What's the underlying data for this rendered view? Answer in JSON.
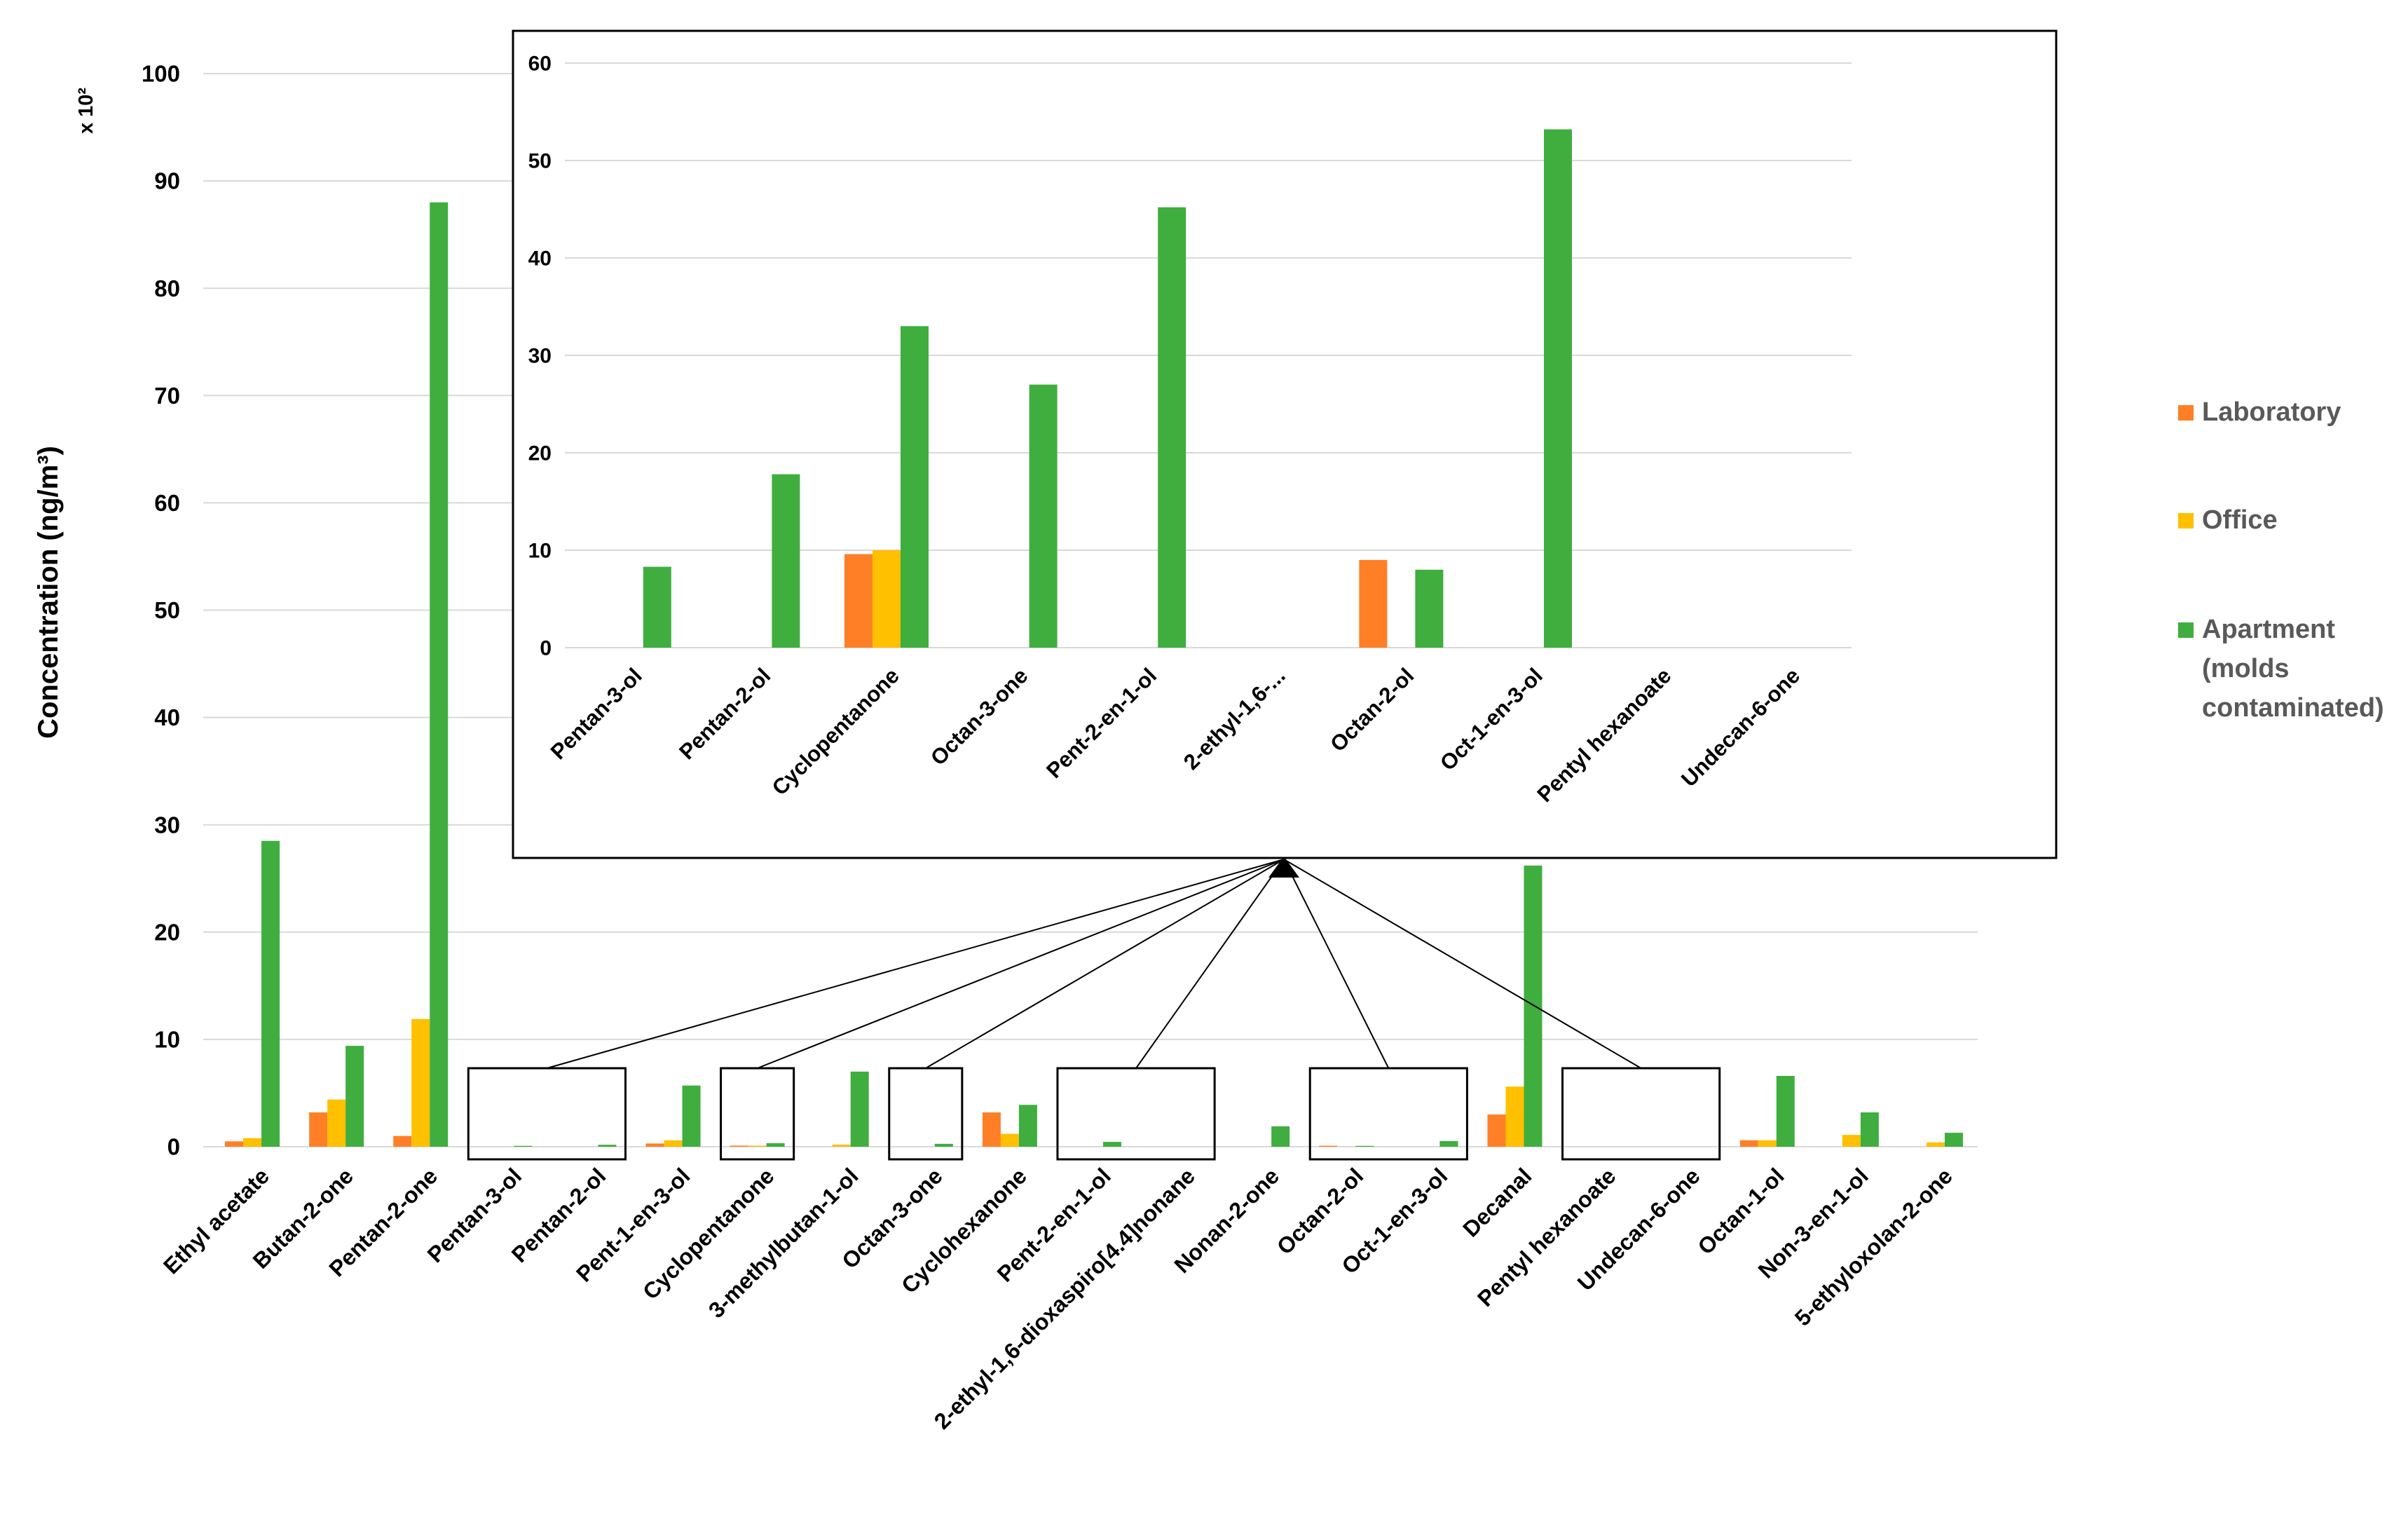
{
  "chart_data": [
    {
      "type": "bar",
      "title": "",
      "xlabel": "",
      "ylabel": "Concentration (ng/m³)",
      "y_multiplier_label": "x 10²",
      "ylim": [
        0,
        100
      ],
      "yticks": [
        0,
        10,
        20,
        30,
        40,
        50,
        60,
        70,
        80,
        90,
        100
      ],
      "grid": true,
      "legend_position": "right",
      "categories": [
        "Ethyl acetate",
        "Butan-2-one",
        "Pentan-2-one",
        "Pentan-3-ol",
        "Pentan-2-ol",
        "Pent-1-en-3-ol",
        "Cyclopentanone",
        "3-methylbutan-1-ol",
        "Octan-3-one",
        "Cyclohexanone",
        "Pent-2-en-1-ol",
        "2-ethyl-1,6-dioxaspiro[4.4]nonane",
        "Nonan-2-one",
        "Octan-2-ol",
        "Oct-1-en-3-ol",
        "Decanal",
        "Pentyl hexanoate",
        "Undecan-6-one",
        "Octan-1-ol",
        "Non-3-en-1-ol",
        "5-ethyloxolan-2-one"
      ],
      "series": [
        {
          "name": "Laboratory",
          "color": "#FF7F27",
          "values": [
            0.5,
            3.2,
            1.0,
            0,
            0,
            0.3,
            0.1,
            0,
            0,
            3.2,
            0,
            0,
            0,
            0.09,
            0,
            3.0,
            0,
            0,
            0.6,
            0,
            0
          ]
        },
        {
          "name": "Office",
          "color": "#FFC000",
          "values": [
            0.8,
            4.4,
            11.9,
            0,
            0,
            0.6,
            0.1,
            0.2,
            0,
            1.2,
            0,
            0,
            0,
            0,
            0,
            5.6,
            0,
            0,
            0.6,
            1.1,
            0.4
          ]
        },
        {
          "name": "Apartment (molds contaminated)",
          "color": "#3FAE3F",
          "values": [
            28.5,
            9.4,
            88.0,
            0.08,
            0.18,
            5.7,
            0.33,
            7.0,
            0.27,
            3.9,
            0.45,
            0,
            1.9,
            0.08,
            0.53,
            26.2,
            0,
            0,
            6.6,
            3.2,
            1.3
          ]
        }
      ]
    },
    {
      "type": "bar",
      "title": "",
      "ylim": [
        0,
        60
      ],
      "yticks": [
        0,
        10,
        20,
        30,
        40,
        50,
        60
      ],
      "grid": true,
      "categories": [
        "Pentan-3-ol",
        "Pentan-2-ol",
        "Cyclopentanone",
        "Octan-3-one",
        "Pent-2-en-1-ol",
        "2-ethyl-1,6-...",
        "Octan-2-ol",
        "Oct-1-en-3-ol",
        "Pentyl hexanoate",
        "Undecan-6-one"
      ],
      "series": [
        {
          "name": "Laboratory",
          "color": "#FF7F27",
          "values": [
            0,
            0,
            9.6,
            0,
            0,
            0,
            9.0,
            0,
            0,
            0
          ]
        },
        {
          "name": "Office",
          "color": "#FFC000",
          "values": [
            0,
            0,
            10.0,
            0,
            0,
            0,
            0,
            0,
            0,
            0
          ]
        },
        {
          "name": "Apartment (molds contaminated)",
          "color": "#3FAE3F",
          "values": [
            8.3,
            17.8,
            33.0,
            27.0,
            45.2,
            0,
            8.0,
            53.2,
            0,
            0
          ]
        }
      ]
    }
  ],
  "legend": {
    "items": [
      {
        "label": "Laboratory",
        "color": "#FF7F27"
      },
      {
        "label": "Office",
        "color": "#FFC000"
      },
      {
        "label_lines": [
          "Apartment",
          "(molds",
          "contaminated)"
        ],
        "color": "#3FAE3F"
      }
    ]
  },
  "colors": {
    "grid": "#D9D9D9",
    "text": "#000000",
    "legend_text": "#595959",
    "frame": "#000000"
  }
}
